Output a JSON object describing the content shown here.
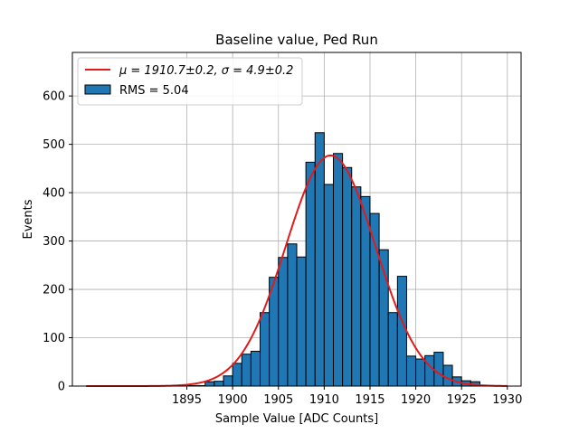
{
  "chart_data": {
    "type": "bar",
    "title": "Baseline value, Ped Run",
    "xlabel": "Sample Value [ADC Counts]",
    "ylabel": "Events",
    "xlim": [
      1882.5,
      1931.5
    ],
    "ylim": [
      0,
      690
    ],
    "grid": true,
    "legend_position": "top-left",
    "x_ticks": [
      1895,
      1900,
      1905,
      1910,
      1915,
      1920,
      1925,
      1930
    ],
    "y_ticks": [
      0,
      100,
      200,
      300,
      400,
      500,
      600
    ],
    "bin_width": 1,
    "bins": [
      1894,
      1895,
      1896,
      1897,
      1898,
      1899,
      1900,
      1901,
      1902,
      1903,
      1904,
      1905,
      1906,
      1907,
      1908,
      1909,
      1910,
      1911,
      1912,
      1913,
      1914,
      1915,
      1916,
      1917,
      1918,
      1919,
      1920,
      1921,
      1922,
      1923,
      1924,
      1925,
      1926,
      1927
    ],
    "values": [
      1,
      1,
      1,
      9,
      10,
      21,
      47,
      66,
      72,
      152,
      225,
      266,
      294,
      267,
      463,
      524,
      417,
      481,
      452,
      412,
      392,
      357,
      282,
      152,
      227,
      62,
      56,
      63,
      70,
      43,
      19,
      11,
      9,
      1
    ],
    "histogram_color": "#1f77b4",
    "histogram_label": "RMS = 5.04",
    "fit": {
      "type": "gaussian",
      "label": "μ = 1910.7±0.2, σ = 4.9±0.2",
      "mu": 1910.7,
      "sigma": 4.9,
      "amplitude": 477,
      "x_range": [
        1884,
        1930
      ],
      "color": "#e31a1c"
    }
  }
}
